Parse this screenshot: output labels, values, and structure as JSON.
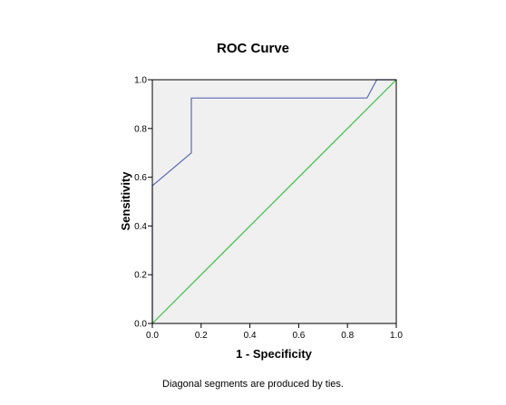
{
  "chart_data": {
    "type": "line",
    "title": "ROC Curve",
    "xlabel": "1 - Specificity",
    "ylabel": "Sensitivity",
    "xlim": [
      0.0,
      1.0
    ],
    "ylim": [
      0.0,
      1.0
    ],
    "x_ticks": [
      "0.0",
      "0.2",
      "0.4",
      "0.6",
      "0.8",
      "1.0"
    ],
    "y_ticks": [
      "0.0",
      "0.2",
      "0.4",
      "0.6",
      "0.8",
      "1.0"
    ],
    "grid": false,
    "series": [
      {
        "color": "#5B6BB5",
        "x": [
          0.0,
          0.0,
          0.16,
          0.16,
          0.88,
          0.92,
          1.0
        ],
        "y": [
          0.0,
          0.565,
          0.7,
          0.925,
          0.925,
          1.0,
          1.0
        ]
      },
      {
        "color": "#3DBE45",
        "x": [
          0.0,
          1.0
        ],
        "y": [
          0.0,
          1.0
        ]
      }
    ],
    "footnote": "Diagonal segments are produced by ties.",
    "plot_background": "#F0F0F0"
  }
}
